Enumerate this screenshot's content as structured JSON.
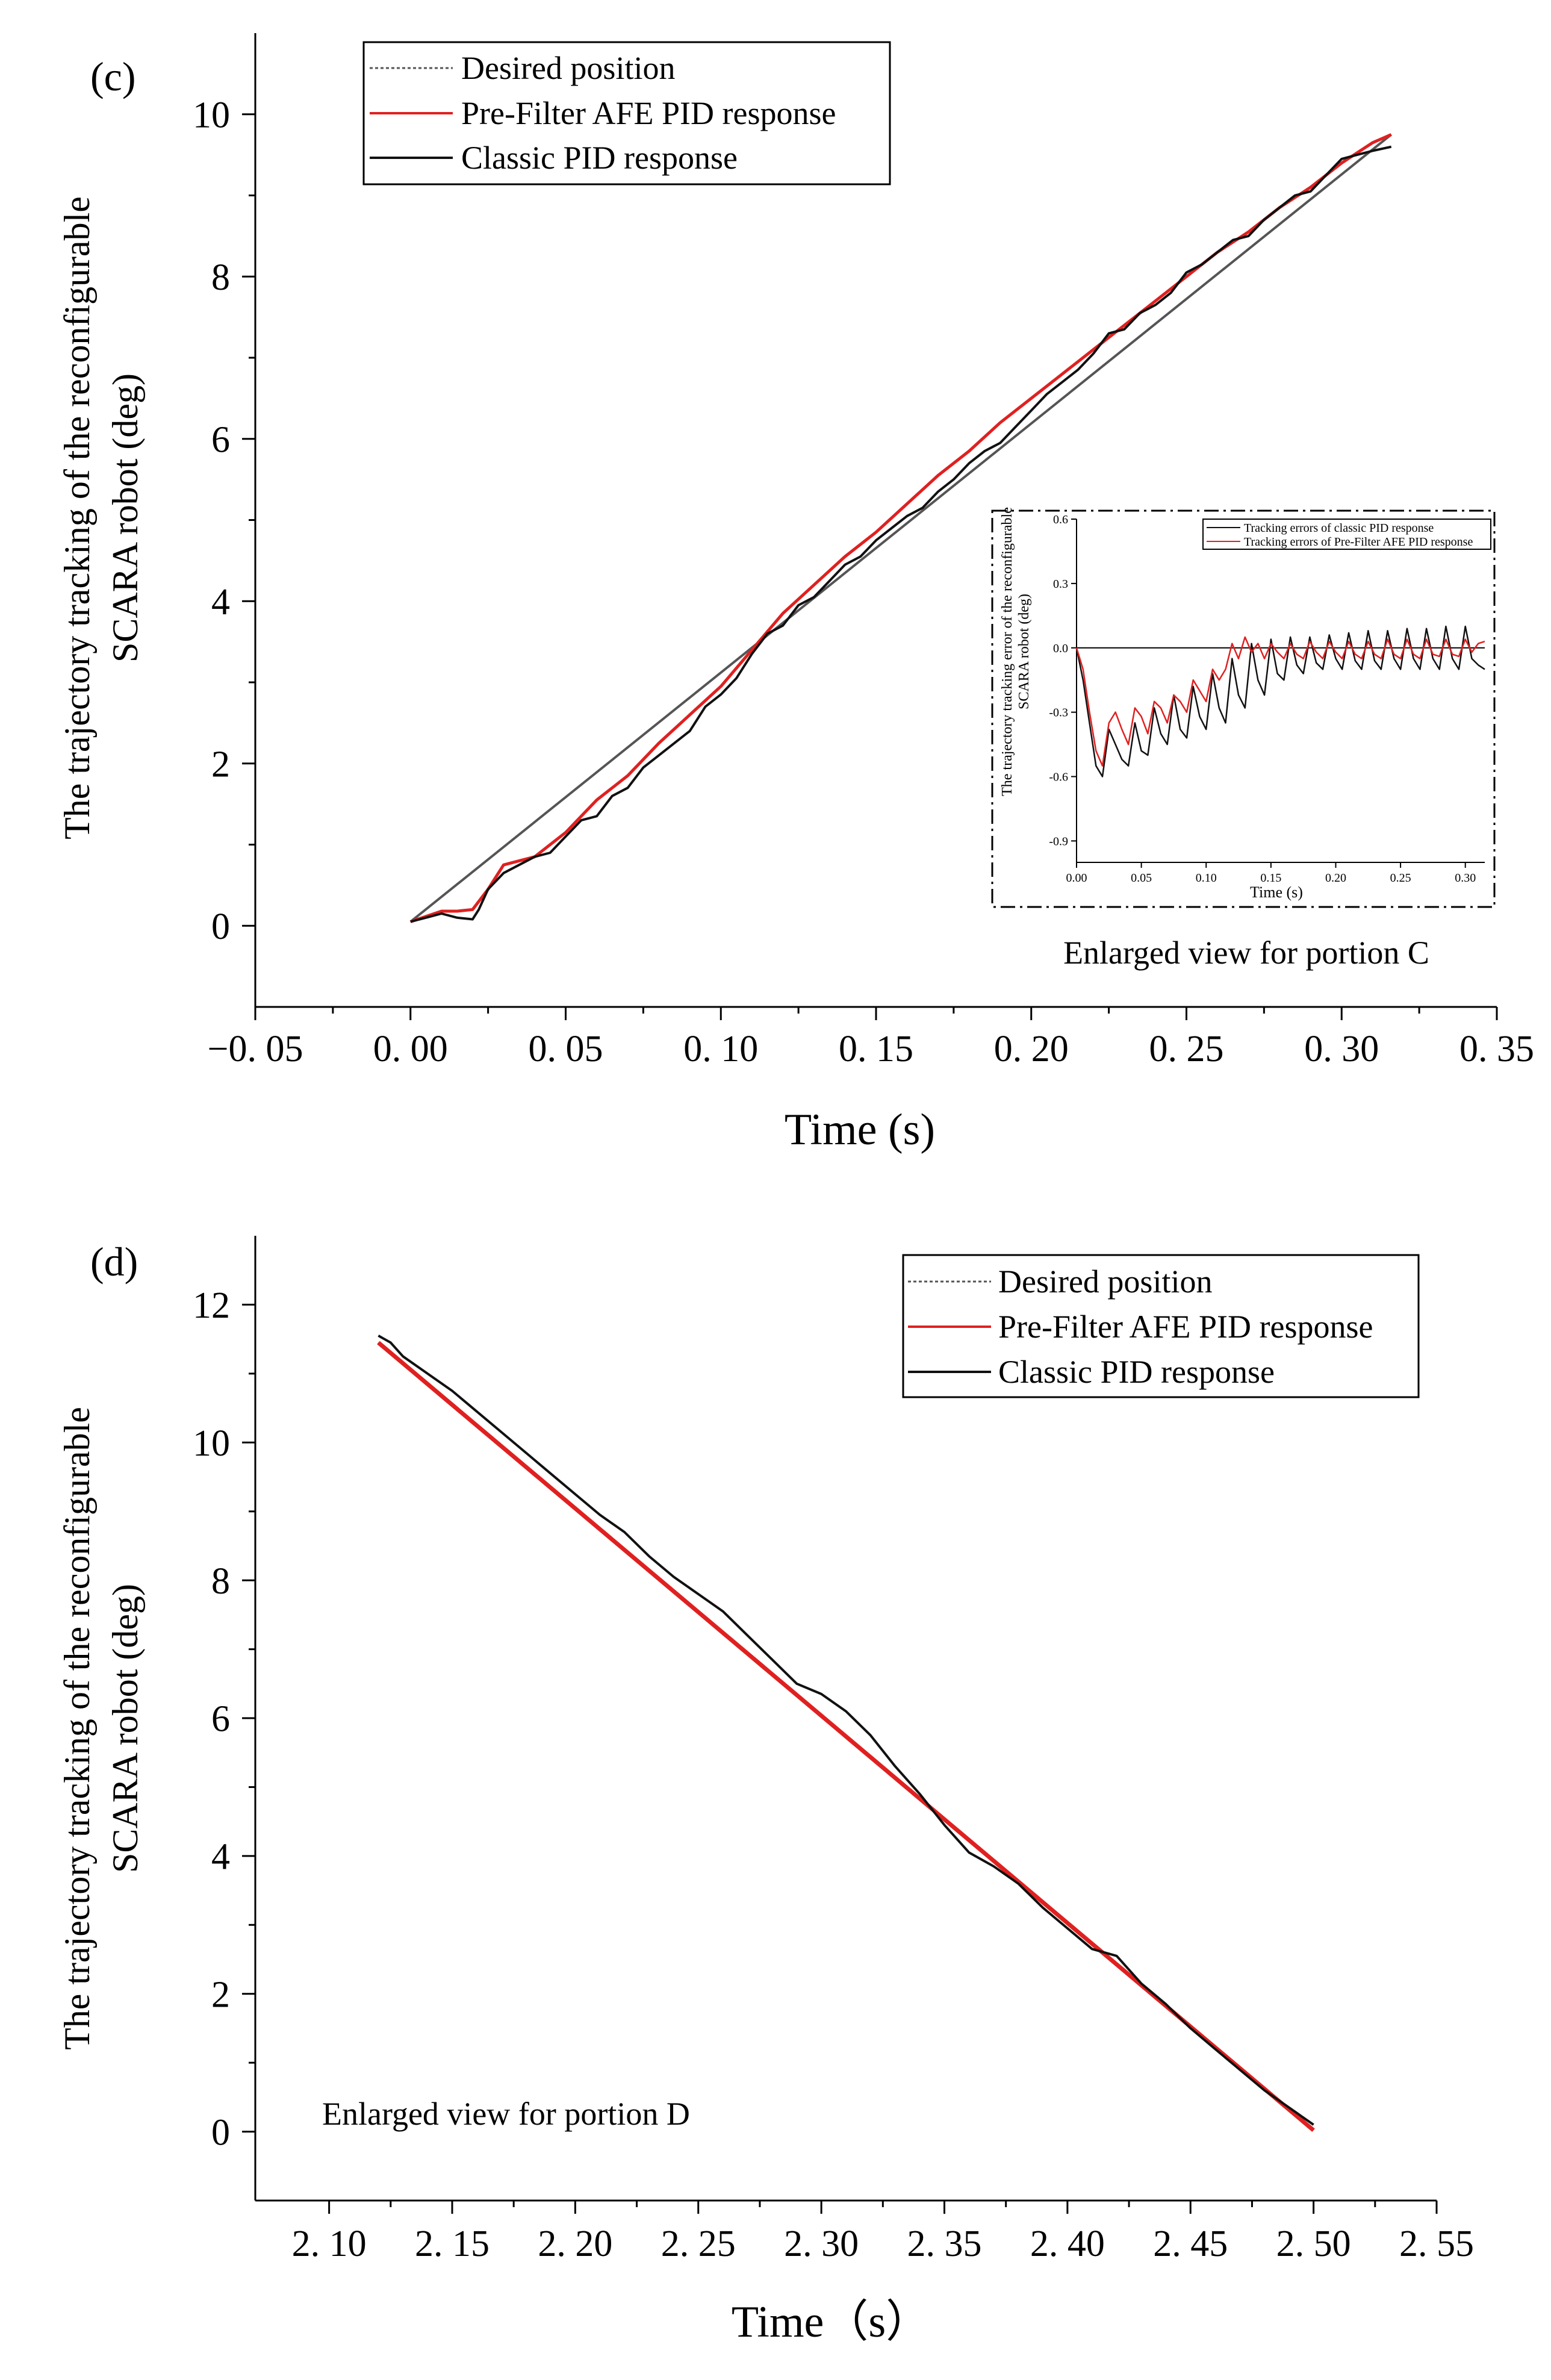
{
  "chart_data": [
    {
      "type": "line",
      "panel_label": "(c)",
      "xlabel": "Time (s)",
      "ylabel_line1": "The trajectory tracking of the reconfigurable",
      "ylabel_line2": "SCARA robot (deg)",
      "xlim": [
        -0.05,
        0.35
      ],
      "ylim": [
        -1,
        11
      ],
      "x_ticks": [
        -0.05,
        0.0,
        0.05,
        0.1,
        0.15,
        0.2,
        0.25,
        0.3,
        0.35
      ],
      "x_tick_labels": [
        "−0. 05",
        "0. 00",
        "0. 05",
        "0. 10",
        "0. 15",
        "0. 20",
        "0. 25",
        "0. 30",
        "0. 35"
      ],
      "y_ticks": [
        0,
        2,
        4,
        6,
        8,
        10
      ],
      "y_tick_labels": [
        "0",
        "2",
        "4",
        "6",
        "8",
        "10"
      ],
      "legend": [
        "Desired position",
        "Pre-Filter AFE PID response",
        "Classic PID response"
      ],
      "legend_position": "top-left",
      "colors": {
        "desired": "#555555",
        "prefilter": "#e02020",
        "classic": "#111111"
      },
      "series": [
        {
          "name": "Desired position",
          "x": [
            0.0,
            0.316
          ],
          "y": [
            0.05,
            9.75
          ]
        },
        {
          "name": "Pre-Filter AFE PID response",
          "x": [
            0.0,
            0.01,
            0.015,
            0.02,
            0.025,
            0.03,
            0.04,
            0.05,
            0.06,
            0.07,
            0.08,
            0.09,
            0.1,
            0.11,
            0.12,
            0.13,
            0.14,
            0.15,
            0.16,
            0.17,
            0.18,
            0.19,
            0.2,
            0.21,
            0.22,
            0.23,
            0.24,
            0.25,
            0.26,
            0.27,
            0.28,
            0.29,
            0.3,
            0.31,
            0.316
          ],
          "y": [
            0.05,
            0.18,
            0.18,
            0.2,
            0.45,
            0.75,
            0.85,
            1.15,
            1.55,
            1.85,
            2.25,
            2.6,
            2.95,
            3.4,
            3.85,
            4.2,
            4.55,
            4.85,
            5.2,
            5.55,
            5.85,
            6.2,
            6.5,
            6.8,
            7.1,
            7.4,
            7.7,
            8.0,
            8.3,
            8.55,
            8.85,
            9.1,
            9.4,
            9.65,
            9.75
          ]
        },
        {
          "name": "Classic PID response",
          "x": [
            0.0,
            0.005,
            0.01,
            0.015,
            0.02,
            0.022,
            0.025,
            0.03,
            0.035,
            0.04,
            0.045,
            0.05,
            0.055,
            0.06,
            0.065,
            0.07,
            0.075,
            0.08,
            0.085,
            0.09,
            0.095,
            0.1,
            0.105,
            0.11,
            0.115,
            0.12,
            0.125,
            0.13,
            0.135,
            0.14,
            0.145,
            0.15,
            0.155,
            0.16,
            0.165,
            0.17,
            0.175,
            0.18,
            0.185,
            0.19,
            0.195,
            0.2,
            0.205,
            0.21,
            0.215,
            0.22,
            0.225,
            0.23,
            0.235,
            0.24,
            0.245,
            0.25,
            0.255,
            0.26,
            0.265,
            0.27,
            0.275,
            0.28,
            0.285,
            0.29,
            0.295,
            0.3,
            0.305,
            0.31,
            0.316
          ],
          "y": [
            0.05,
            0.1,
            0.15,
            0.1,
            0.08,
            0.2,
            0.45,
            0.65,
            0.75,
            0.85,
            0.9,
            1.1,
            1.3,
            1.35,
            1.6,
            1.7,
            1.95,
            2.1,
            2.25,
            2.4,
            2.7,
            2.85,
            3.05,
            3.35,
            3.6,
            3.7,
            3.95,
            4.05,
            4.25,
            4.45,
            4.55,
            4.75,
            4.9,
            5.05,
            5.15,
            5.35,
            5.5,
            5.7,
            5.85,
            5.95,
            6.15,
            6.35,
            6.55,
            6.7,
            6.85,
            7.05,
            7.3,
            7.35,
            7.55,
            7.65,
            7.8,
            8.05,
            8.15,
            8.3,
            8.45,
            8.5,
            8.7,
            8.85,
            9.0,
            9.05,
            9.25,
            9.45,
            9.5,
            9.55,
            9.6
          ]
        }
      ],
      "inset": {
        "title": "Enlarged view for portion C",
        "xlabel": "Time (s)",
        "ylabel_line1": "The trajectory tracking error of the reconfigurable",
        "ylabel_line2": "SCARA robot (deg)",
        "xlim": [
          0.0,
          0.315
        ],
        "ylim": [
          -1.0,
          0.6
        ],
        "x_ticks": [
          0.0,
          0.05,
          0.1,
          0.15,
          0.2,
          0.25,
          0.3
        ],
        "x_tick_labels": [
          "0.00",
          "0.05",
          "0.10",
          "0.15",
          "0.20",
          "0.25",
          "0.30"
        ],
        "y_ticks": [
          0.6,
          0.3,
          0.0,
          -0.3,
          -0.6,
          -0.9
        ],
        "y_tick_labels": [
          "0.6",
          "0.3",
          "0.0",
          "-0.3",
          "-0.6",
          "-0.9"
        ],
        "legend": [
          "Tracking errors of classic PID response",
          "Tracking errors of Pre-Filter AFE PID response"
        ],
        "series": [
          {
            "name": "Tracking errors of classic PID response",
            "x": [
              0.0,
              0.005,
              0.01,
              0.015,
              0.02,
              0.025,
              0.03,
              0.035,
              0.04,
              0.045,
              0.05,
              0.055,
              0.06,
              0.065,
              0.07,
              0.075,
              0.08,
              0.085,
              0.09,
              0.095,
              0.1,
              0.105,
              0.11,
              0.115,
              0.12,
              0.125,
              0.13,
              0.135,
              0.14,
              0.145,
              0.15,
              0.155,
              0.16,
              0.165,
              0.17,
              0.175,
              0.18,
              0.185,
              0.19,
              0.195,
              0.2,
              0.205,
              0.21,
              0.215,
              0.22,
              0.225,
              0.23,
              0.235,
              0.24,
              0.245,
              0.25,
              0.255,
              0.26,
              0.265,
              0.27,
              0.275,
              0.28,
              0.285,
              0.29,
              0.295,
              0.3,
              0.305,
              0.31,
              0.315
            ],
            "y": [
              0.0,
              -0.15,
              -0.35,
              -0.55,
              -0.6,
              -0.38,
              -0.45,
              -0.52,
              -0.55,
              -0.35,
              -0.48,
              -0.5,
              -0.28,
              -0.4,
              -0.45,
              -0.22,
              -0.38,
              -0.42,
              -0.18,
              -0.32,
              -0.38,
              -0.12,
              -0.28,
              -0.35,
              -0.05,
              -0.22,
              -0.28,
              0.02,
              -0.15,
              -0.22,
              0.04,
              -0.12,
              -0.15,
              0.05,
              -0.08,
              -0.12,
              0.05,
              -0.07,
              -0.1,
              0.06,
              -0.05,
              -0.1,
              0.07,
              -0.06,
              -0.1,
              0.08,
              -0.06,
              -0.1,
              0.08,
              -0.05,
              -0.1,
              0.09,
              -0.05,
              -0.1,
              0.09,
              -0.05,
              -0.1,
              0.1,
              -0.05,
              -0.1,
              0.1,
              -0.05,
              -0.08,
              -0.1
            ]
          },
          {
            "name": "Tracking errors of Pre-Filter AFE PID response",
            "x": [
              0.0,
              0.005,
              0.01,
              0.015,
              0.02,
              0.025,
              0.03,
              0.035,
              0.04,
              0.045,
              0.05,
              0.055,
              0.06,
              0.065,
              0.07,
              0.075,
              0.08,
              0.085,
              0.09,
              0.095,
              0.1,
              0.105,
              0.11,
              0.115,
              0.12,
              0.125,
              0.13,
              0.135,
              0.14,
              0.145,
              0.15,
              0.155,
              0.16,
              0.165,
              0.17,
              0.175,
              0.18,
              0.185,
              0.19,
              0.195,
              0.2,
              0.205,
              0.21,
              0.215,
              0.22,
              0.225,
              0.23,
              0.235,
              0.24,
              0.245,
              0.25,
              0.255,
              0.26,
              0.265,
              0.27,
              0.275,
              0.28,
              0.285,
              0.29,
              0.295,
              0.3,
              0.305,
              0.31,
              0.315
            ],
            "y": [
              0.0,
              -0.1,
              -0.3,
              -0.48,
              -0.55,
              -0.35,
              -0.3,
              -0.38,
              -0.45,
              -0.28,
              -0.32,
              -0.4,
              -0.25,
              -0.28,
              -0.35,
              -0.22,
              -0.25,
              -0.3,
              -0.15,
              -0.2,
              -0.25,
              -0.1,
              -0.15,
              -0.1,
              0.02,
              -0.05,
              0.05,
              -0.02,
              0.02,
              -0.05,
              0.02,
              -0.02,
              -0.05,
              0.02,
              -0.03,
              -0.05,
              0.03,
              -0.02,
              -0.05,
              0.03,
              -0.02,
              -0.05,
              0.03,
              -0.03,
              -0.05,
              0.03,
              -0.03,
              -0.05,
              0.04,
              -0.03,
              -0.05,
              0.04,
              -0.03,
              -0.05,
              0.04,
              -0.03,
              -0.04,
              0.04,
              -0.03,
              -0.04,
              0.04,
              -0.02,
              0.02,
              0.03
            ]
          }
        ]
      }
    },
    {
      "type": "line",
      "panel_label": "(d)",
      "xlabel": "Time（s）",
      "ylabel_line1": "The trajectory tracking of the reconfigurable",
      "ylabel_line2": "SCARA robot (deg)",
      "annotation": "Enlarged view for portion D",
      "xlim": [
        2.07,
        2.55
      ],
      "ylim": [
        -1,
        13
      ],
      "x_ticks": [
        2.1,
        2.15,
        2.2,
        2.25,
        2.3,
        2.35,
        2.4,
        2.45,
        2.5,
        2.55
      ],
      "x_tick_labels": [
        "2. 10",
        "2. 15",
        "2. 20",
        "2. 25",
        "2. 30",
        "2. 35",
        "2. 40",
        "2. 45",
        "2. 50",
        "2. 55"
      ],
      "y_ticks": [
        0,
        2,
        4,
        6,
        8,
        10,
        12
      ],
      "y_tick_labels": [
        "0",
        "2",
        "4",
        "6",
        "8",
        "10",
        "12"
      ],
      "legend": [
        "Desired position",
        "Pre-Filter AFE PID response",
        "Classic PID response"
      ],
      "legend_position": "top-right",
      "colors": {
        "desired": "#555555",
        "prefilter": "#e02020",
        "classic": "#111111"
      },
      "series": [
        {
          "name": "Desired position",
          "x": [
            2.12,
            2.5
          ],
          "y": [
            11.45,
            0.02
          ]
        },
        {
          "name": "Pre-Filter AFE PID response",
          "x": [
            2.12,
            2.5
          ],
          "y": [
            11.45,
            0.02
          ]
        },
        {
          "name": "Classic PID response",
          "x": [
            2.12,
            2.125,
            2.13,
            2.14,
            2.15,
            2.16,
            2.17,
            2.18,
            2.19,
            2.2,
            2.21,
            2.22,
            2.23,
            2.24,
            2.25,
            2.26,
            2.27,
            2.28,
            2.29,
            2.3,
            2.31,
            2.32,
            2.33,
            2.34,
            2.35,
            2.36,
            2.37,
            2.38,
            2.39,
            2.4,
            2.41,
            2.42,
            2.43,
            2.44,
            2.45,
            2.46,
            2.47,
            2.48,
            2.49,
            2.5
          ],
          "y": [
            11.55,
            11.45,
            11.25,
            11.0,
            10.75,
            10.45,
            10.15,
            9.85,
            9.55,
            9.25,
            8.95,
            8.7,
            8.35,
            8.05,
            7.8,
            7.55,
            7.2,
            6.85,
            6.5,
            6.35,
            6.1,
            5.75,
            5.3,
            4.9,
            4.45,
            4.05,
            3.85,
            3.6,
            3.25,
            2.95,
            2.65,
            2.55,
            2.15,
            1.85,
            1.5,
            1.2,
            0.9,
            0.6,
            0.35,
            0.1
          ]
        }
      ]
    }
  ]
}
